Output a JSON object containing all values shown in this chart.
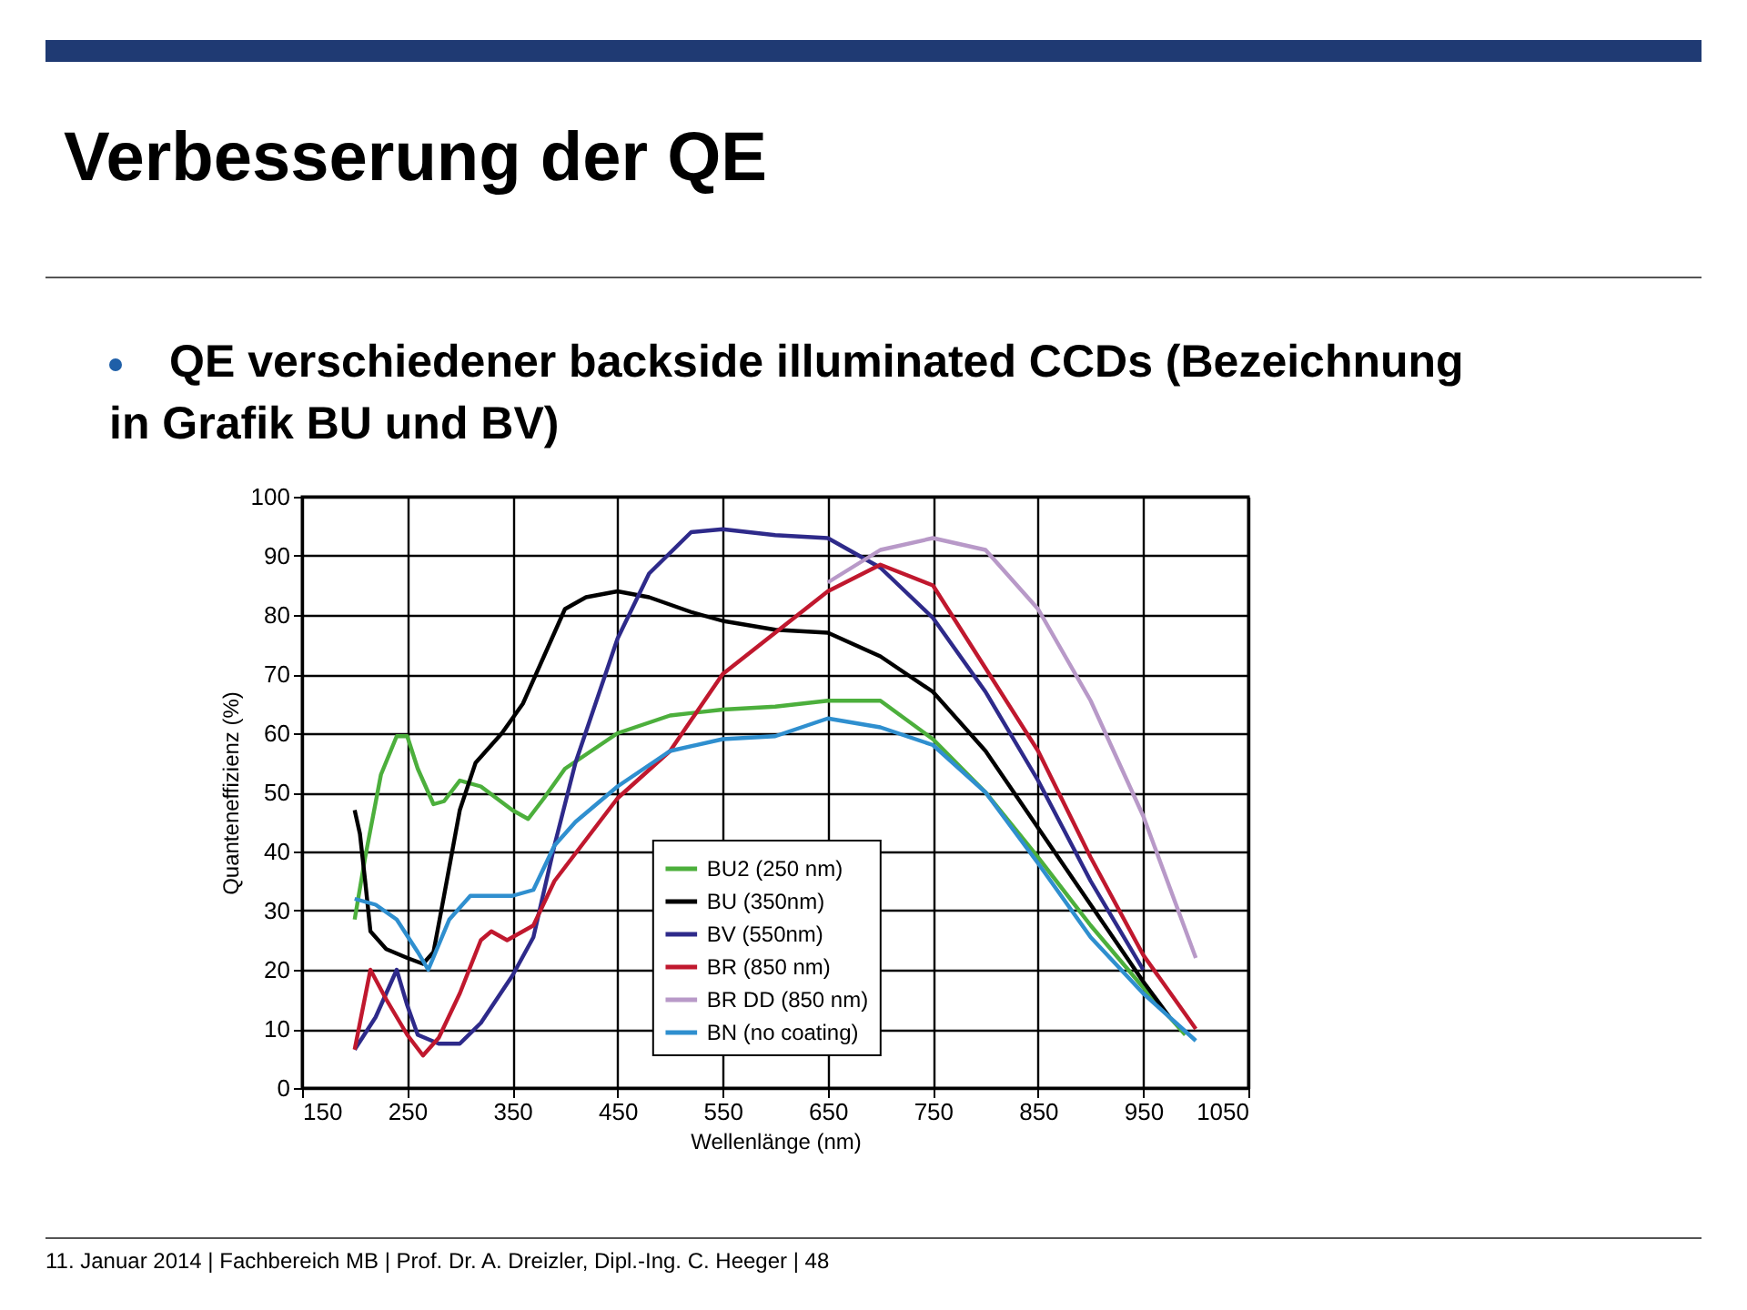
{
  "chart_data": {
    "type": "line",
    "title": "Verbesserung der QE",
    "subtitle": "QE verschiedener backside illuminated CCDs (Bezeichnung in Grafik BU und BV)",
    "xlabel": "Wellenlänge (nm)",
    "ylabel": "Quanteneffizienz (%)",
    "xlim": [
      150,
      1050
    ],
    "xticks": [
      150,
      250,
      350,
      450,
      550,
      650,
      750,
      850,
      950,
      1050
    ],
    "ylim": [
      0,
      100
    ],
    "yticks": [
      0,
      10,
      20,
      30,
      40,
      50,
      60,
      70,
      80,
      90,
      100
    ],
    "grid": true,
    "legend": "bottom",
    "marker": "none",
    "line_style": "solid",
    "annotations": [
      "11. Januar 2014 | Fachbereich MB | Prof. Dr. A. Dreizler, Dipl.-Ing. C. Heeger | 48"
    ],
    "series": [
      {
        "name": "BU2 (250 nm)",
        "color": "#4caf3c",
        "x": [
          200,
          210,
          225,
          240,
          250,
          260,
          275,
          285,
          300,
          320,
          350,
          365,
          380,
          400,
          450,
          500,
          550,
          600,
          650,
          700,
          750,
          800,
          850,
          900,
          950,
          990
        ],
        "values": [
          28.5,
          39,
          53,
          59.5,
          59.5,
          54,
          48,
          48.5,
          52,
          51,
          47,
          45.5,
          49,
          54,
          60,
          63,
          64,
          64.5,
          65.5,
          65.5,
          59,
          50,
          39,
          27.5,
          17,
          9
        ]
      },
      {
        "name": "BU (350nm)",
        "color": "#000000",
        "x": [
          200,
          205,
          210,
          215,
          230,
          250,
          265,
          275,
          285,
          300,
          315,
          340,
          360,
          380,
          400,
          420,
          450,
          480,
          520,
          550,
          600,
          650,
          700,
          750,
          800,
          850,
          900,
          950,
          975
        ],
        "values": [
          47,
          43,
          35,
          26.5,
          23.5,
          22,
          21,
          23,
          32.5,
          47,
          55,
          60,
          65,
          73,
          81,
          83,
          84,
          83,
          80.5,
          79,
          77.5,
          77,
          73,
          67,
          57,
          44,
          31,
          18,
          12
        ]
      },
      {
        "name": "BV (550nm)",
        "color": "#2e2a8a",
        "x": [
          200,
          220,
          240,
          250,
          260,
          280,
          300,
          320,
          350,
          370,
          390,
          410,
          450,
          480,
          520,
          550,
          600,
          650,
          700,
          750,
          800,
          850,
          900,
          950
        ],
        "values": [
          6.5,
          12,
          20,
          14,
          9,
          7.5,
          7.5,
          11,
          19,
          25.5,
          41,
          55,
          76,
          87,
          94,
          94.5,
          93.5,
          93,
          88,
          79.5,
          67,
          52,
          35,
          20
        ]
      },
      {
        "name": "BR (850 nm)",
        "color": "#c0182e",
        "x": [
          200,
          215,
          230,
          250,
          265,
          280,
          300,
          320,
          330,
          345,
          370,
          390,
          450,
          500,
          550,
          600,
          650,
          700,
          750,
          800,
          850,
          900,
          950,
          1000
        ],
        "values": [
          6.5,
          20,
          15,
          9,
          5.5,
          8.5,
          16,
          25,
          26.5,
          25,
          27.5,
          35,
          49,
          57,
          70,
          77,
          84,
          88.5,
          85,
          71,
          57,
          39,
          22.5,
          10
        ]
      },
      {
        "name": "BR DD (850 nm)",
        "color": "#b899c8",
        "x": [
          650,
          700,
          750,
          800,
          850,
          900,
          950,
          1000
        ],
        "values": [
          85.5,
          91,
          93,
          91,
          81,
          65.5,
          46,
          22
        ]
      },
      {
        "name": "BN (no coating)",
        "color": "#2f8fcf",
        "x": [
          200,
          220,
          240,
          260,
          270,
          290,
          310,
          350,
          370,
          390,
          410,
          450,
          500,
          550,
          600,
          650,
          700,
          750,
          800,
          850,
          900,
          950,
          1000
        ],
        "values": [
          32,
          31,
          28.5,
          23,
          20,
          28.5,
          32.5,
          32.5,
          33.5,
          41,
          45,
          51,
          57,
          59,
          59.5,
          62.5,
          61,
          58,
          50,
          38,
          25.5,
          16,
          8
        ]
      }
    ]
  }
}
